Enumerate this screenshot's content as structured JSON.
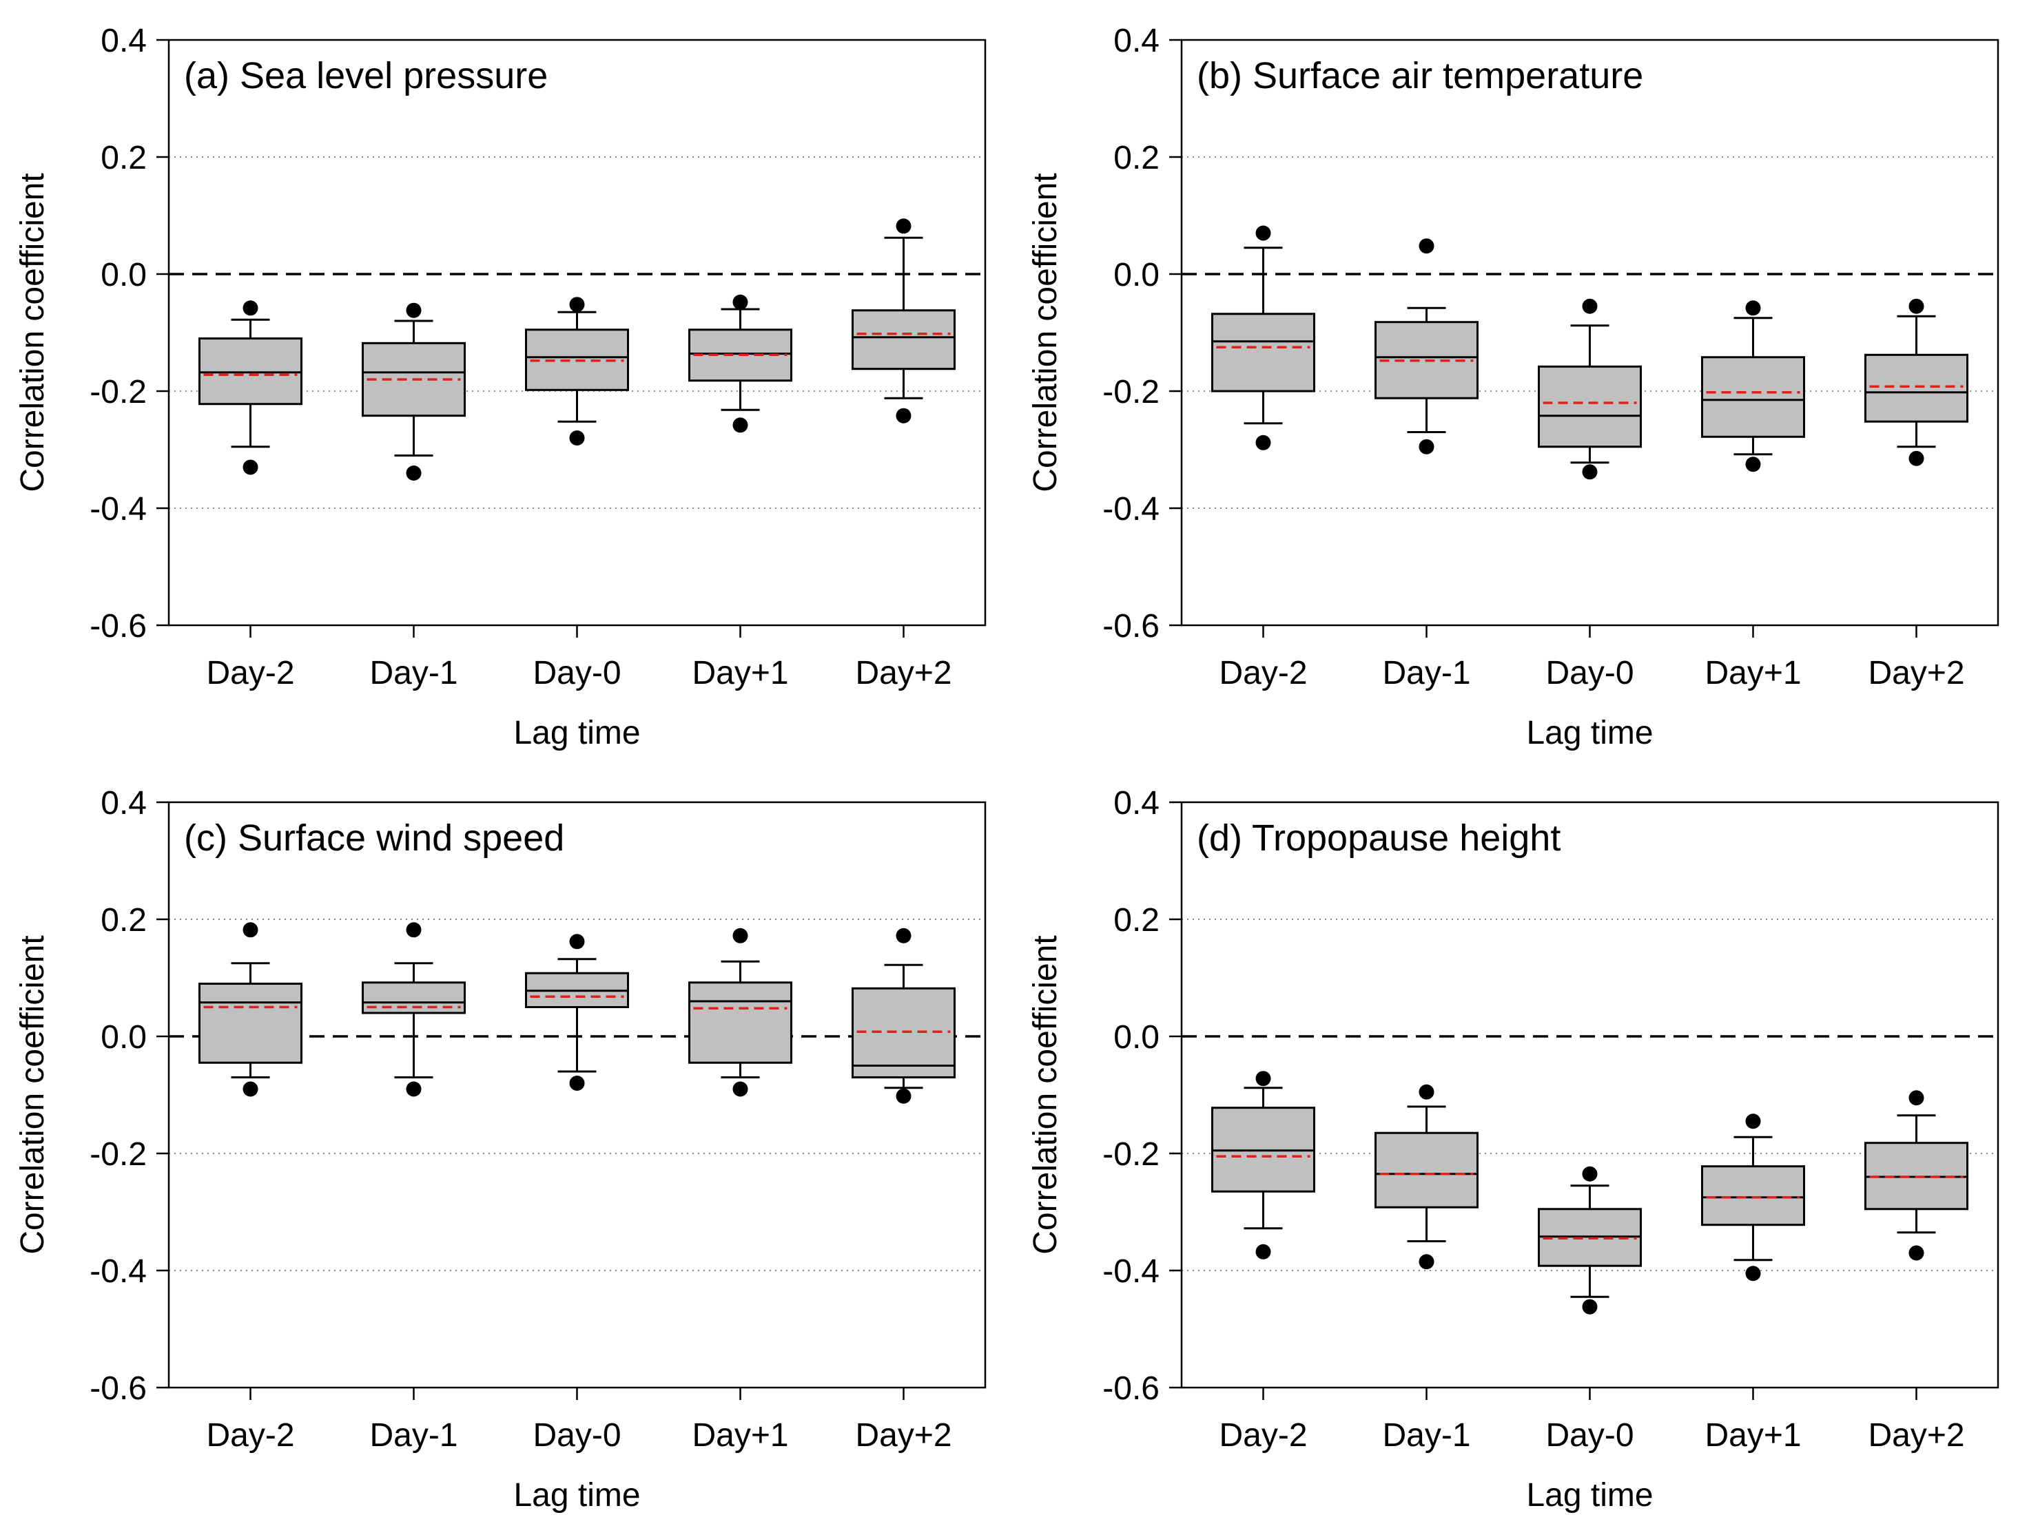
{
  "chart_data": [
    {
      "type": "box",
      "title": "(a) Sea level pressure",
      "xlabel": "Lag time",
      "ylabel": "Correlation coefficient",
      "ylim": [
        -0.6,
        0.4
      ],
      "yticks": [
        -0.6,
        -0.4,
        -0.2,
        0.0,
        0.2,
        0.4
      ],
      "ytick_labels": [
        "-0.6",
        "-0.4",
        "-0.2",
        "0.0",
        "0.2",
        "0.4"
      ],
      "categories": [
        "Day-2",
        "Day-1",
        "Day-0",
        "Day+1",
        "Day+2"
      ],
      "boxes": [
        {
          "q1": -0.222,
          "median": -0.168,
          "mean": -0.172,
          "q3": -0.11,
          "whisker_low": -0.295,
          "whisker_high": -0.078,
          "outliers": [
            -0.058,
            -0.33
          ]
        },
        {
          "q1": -0.242,
          "median": -0.168,
          "mean": -0.18,
          "q3": -0.118,
          "whisker_low": -0.31,
          "whisker_high": -0.08,
          "outliers": [
            -0.062,
            -0.34
          ]
        },
        {
          "q1": -0.198,
          "median": -0.142,
          "mean": -0.148,
          "q3": -0.095,
          "whisker_low": -0.252,
          "whisker_high": -0.065,
          "outliers": [
            -0.052,
            -0.28
          ]
        },
        {
          "q1": -0.182,
          "median": -0.136,
          "mean": -0.138,
          "q3": -0.095,
          "whisker_low": -0.232,
          "whisker_high": -0.06,
          "outliers": [
            -0.048,
            -0.258
          ]
        },
        {
          "q1": -0.162,
          "median": -0.108,
          "mean": -0.102,
          "q3": -0.062,
          "whisker_low": -0.212,
          "whisker_high": 0.062,
          "outliers": [
            0.082,
            -0.242
          ]
        }
      ]
    },
    {
      "type": "box",
      "title": "(b) Surface air temperature",
      "xlabel": "Lag time",
      "ylabel": "Correlation coefficient",
      "ylim": [
        -0.6,
        0.4
      ],
      "yticks": [
        -0.6,
        -0.4,
        -0.2,
        0.0,
        0.2,
        0.4
      ],
      "ytick_labels": [
        "-0.6",
        "-0.4",
        "-0.2",
        "0.0",
        "0.2",
        "0.4"
      ],
      "categories": [
        "Day-2",
        "Day-1",
        "Day-0",
        "Day+1",
        "Day+2"
      ],
      "boxes": [
        {
          "q1": -0.2,
          "median": -0.115,
          "mean": -0.125,
          "q3": -0.068,
          "whisker_low": -0.255,
          "whisker_high": 0.045,
          "outliers": [
            0.07,
            -0.288
          ]
        },
        {
          "q1": -0.212,
          "median": -0.142,
          "mean": -0.148,
          "q3": -0.082,
          "whisker_low": -0.27,
          "whisker_high": -0.058,
          "outliers": [
            0.048,
            -0.295
          ]
        },
        {
          "q1": -0.295,
          "median": -0.242,
          "mean": -0.22,
          "q3": -0.158,
          "whisker_low": -0.322,
          "whisker_high": -0.088,
          "outliers": [
            -0.055,
            -0.338
          ]
        },
        {
          "q1": -0.278,
          "median": -0.215,
          "mean": -0.202,
          "q3": -0.142,
          "whisker_low": -0.308,
          "whisker_high": -0.075,
          "outliers": [
            -0.058,
            -0.325
          ]
        },
        {
          "q1": -0.252,
          "median": -0.202,
          "mean": -0.192,
          "q3": -0.138,
          "whisker_low": -0.295,
          "whisker_high": -0.072,
          "outliers": [
            -0.055,
            -0.315
          ]
        }
      ]
    },
    {
      "type": "box",
      "title": "(c) Surface wind speed",
      "xlabel": "Lag time",
      "ylabel": "Correlation coefficient",
      "ylim": [
        -0.6,
        0.4
      ],
      "yticks": [
        -0.6,
        -0.4,
        -0.2,
        0.0,
        0.2,
        0.4
      ],
      "ytick_labels": [
        "-0.6",
        "-0.4",
        "-0.2",
        "0.0",
        "0.2",
        "0.4"
      ],
      "categories": [
        "Day-2",
        "Day-1",
        "Day-0",
        "Day+1",
        "Day+2"
      ],
      "boxes": [
        {
          "q1": -0.045,
          "median": 0.058,
          "mean": 0.05,
          "q3": 0.09,
          "whisker_low": -0.07,
          "whisker_high": 0.125,
          "outliers": [
            0.182,
            -0.09
          ]
        },
        {
          "q1": 0.04,
          "median": 0.058,
          "mean": 0.05,
          "q3": 0.092,
          "whisker_low": -0.07,
          "whisker_high": 0.125,
          "outliers": [
            0.182,
            -0.09
          ]
        },
        {
          "q1": 0.05,
          "median": 0.078,
          "mean": 0.068,
          "q3": 0.108,
          "whisker_low": -0.06,
          "whisker_high": 0.132,
          "outliers": [
            0.162,
            -0.08
          ]
        },
        {
          "q1": -0.045,
          "median": 0.06,
          "mean": 0.048,
          "q3": 0.092,
          "whisker_low": -0.07,
          "whisker_high": 0.128,
          "outliers": [
            0.172,
            -0.09
          ]
        },
        {
          "q1": -0.07,
          "median": -0.05,
          "mean": 0.008,
          "q3": 0.082,
          "whisker_low": -0.088,
          "whisker_high": 0.122,
          "outliers": [
            0.172,
            -0.102
          ]
        }
      ]
    },
    {
      "type": "box",
      "title": "(d) Tropopause height",
      "xlabel": "Lag time",
      "ylabel": "Correlation coefficient",
      "ylim": [
        -0.6,
        0.4
      ],
      "yticks": [
        -0.6,
        -0.4,
        -0.2,
        0.0,
        0.2,
        0.4
      ],
      "ytick_labels": [
        "-0.6",
        "-0.4",
        "-0.2",
        "0.0",
        "0.2",
        "0.4"
      ],
      "categories": [
        "Day-2",
        "Day-1",
        "Day-0",
        "Day+1",
        "Day+2"
      ],
      "boxes": [
        {
          "q1": -0.265,
          "median": -0.195,
          "mean": -0.205,
          "q3": -0.122,
          "whisker_low": -0.328,
          "whisker_high": -0.088,
          "outliers": [
            -0.072,
            -0.368
          ]
        },
        {
          "q1": -0.292,
          "median": -0.235,
          "mean": -0.235,
          "q3": -0.165,
          "whisker_low": -0.35,
          "whisker_high": -0.12,
          "outliers": [
            -0.095,
            -0.385
          ]
        },
        {
          "q1": -0.392,
          "median": -0.342,
          "mean": -0.345,
          "q3": -0.295,
          "whisker_low": -0.445,
          "whisker_high": -0.255,
          "outliers": [
            -0.235,
            -0.462
          ]
        },
        {
          "q1": -0.322,
          "median": -0.275,
          "mean": -0.275,
          "q3": -0.222,
          "whisker_low": -0.382,
          "whisker_high": -0.172,
          "outliers": [
            -0.145,
            -0.405
          ]
        },
        {
          "q1": -0.295,
          "median": -0.24,
          "mean": -0.24,
          "q3": -0.182,
          "whisker_low": -0.335,
          "whisker_high": -0.135,
          "outliers": [
            -0.105,
            -0.37
          ]
        }
      ]
    }
  ],
  "style": {
    "box_fill": "#c0c0c0",
    "mean_color": "#e0201b",
    "line_color": "#000000",
    "grid_color": "#888888"
  }
}
